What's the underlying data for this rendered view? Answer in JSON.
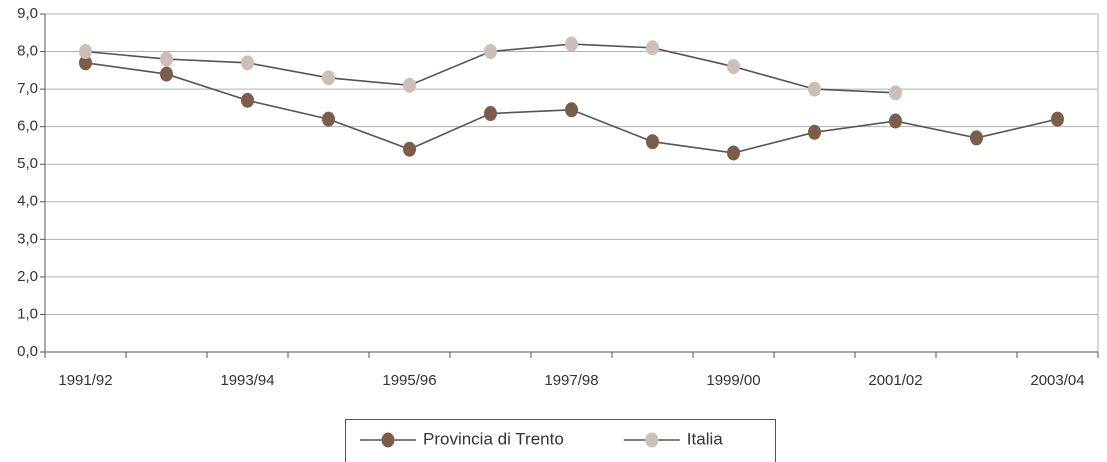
{
  "chart_data": {
    "type": "line",
    "categories": [
      "1991/92",
      null,
      "1993/94",
      null,
      "1995/96",
      null,
      "1997/98",
      null,
      "1999/00",
      null,
      "2001/02",
      null,
      "2003/04"
    ],
    "series": [
      {
        "name": "Provincia di Trento",
        "color": "#7b5d4c",
        "values": [
          7.7,
          7.4,
          6.7,
          6.2,
          5.4,
          6.35,
          6.45,
          5.6,
          5.3,
          5.85,
          6.15,
          5.7,
          6.2
        ]
      },
      {
        "name": "Italia",
        "color": "#cbbfb8",
        "values": [
          8.0,
          7.8,
          7.7,
          7.3,
          7.1,
          8.0,
          8.2,
          8.1,
          7.6,
          7.0,
          6.9,
          null,
          null
        ]
      }
    ],
    "line_color": "#555555",
    "ylim": [
      0,
      9
    ],
    "yticks": [
      {
        "value": 0,
        "label": "0,0"
      },
      {
        "value": 1,
        "label": "1,0"
      },
      {
        "value": 2,
        "label": "2,0"
      },
      {
        "value": 3,
        "label": "3,0"
      },
      {
        "value": 4,
        "label": "4,0"
      },
      {
        "value": 5,
        "label": "5,0"
      },
      {
        "value": 6,
        "label": "6,0"
      },
      {
        "value": 7,
        "label": "7,0"
      },
      {
        "value": 8,
        "label": "8,0"
      },
      {
        "value": 9,
        "label": "9,0"
      }
    ],
    "grid": true,
    "legend": "bottom"
  }
}
